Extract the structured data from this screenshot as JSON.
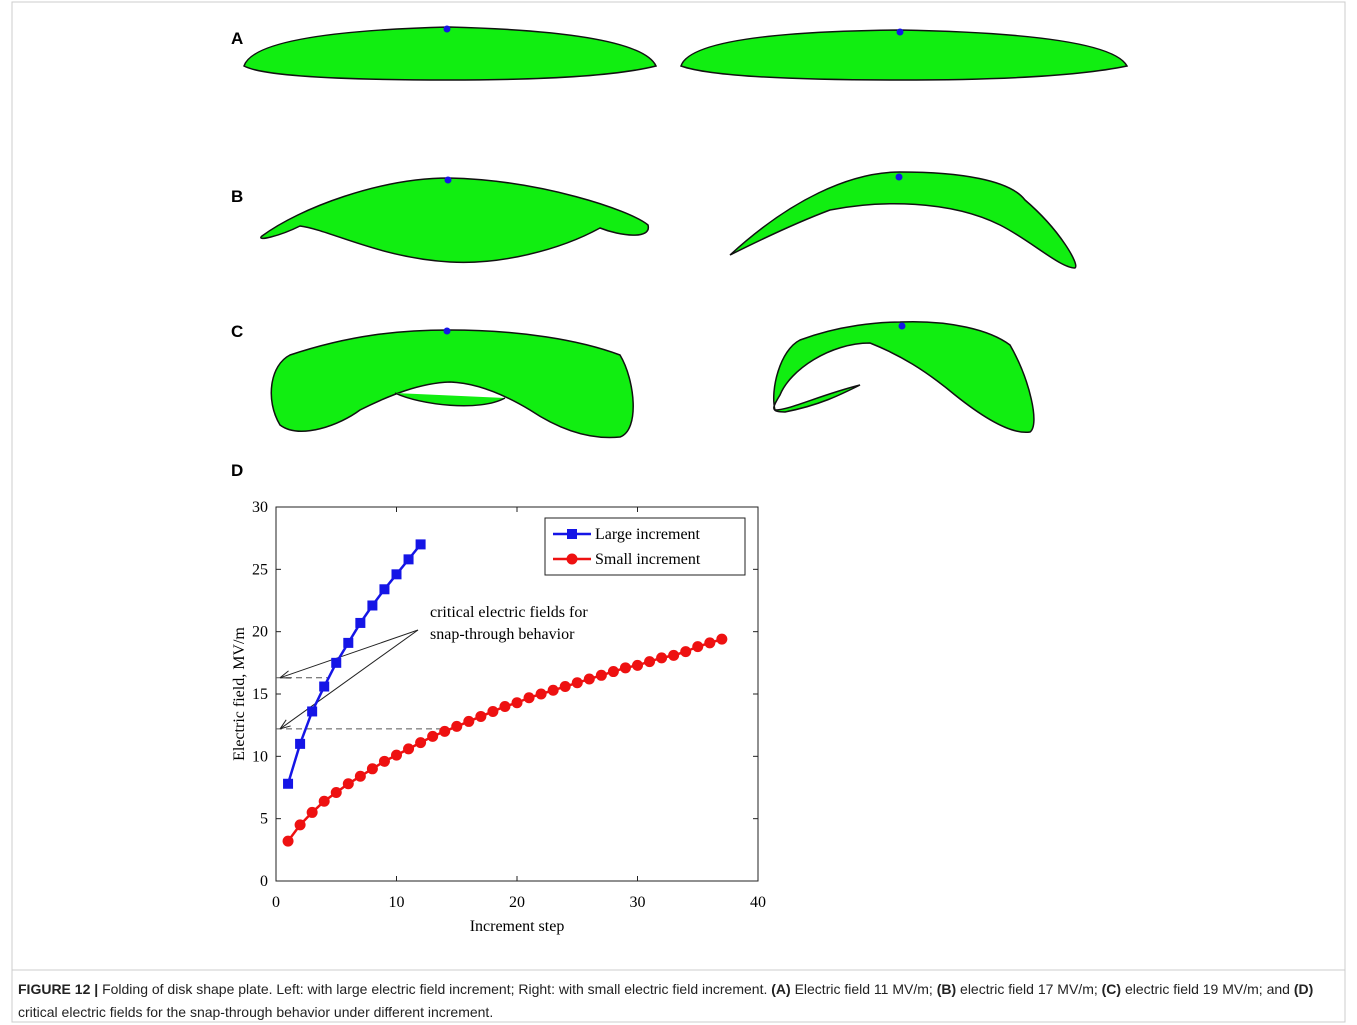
{
  "panels": {
    "a": {
      "label": "A"
    },
    "b": {
      "label": "B"
    },
    "c": {
      "label": "C"
    },
    "d": {
      "label": "D"
    }
  },
  "chart_data": {
    "type": "line",
    "xlabel": "Increment step",
    "ylabel": "Electric field, MV/m",
    "xlim": [
      0,
      40
    ],
    "ylim": [
      0,
      30
    ],
    "xticks": [
      0,
      10,
      20,
      30,
      40
    ],
    "yticks": [
      0,
      5,
      10,
      15,
      20,
      25,
      30
    ],
    "legend": "upper right",
    "series": [
      {
        "name": "Large increment",
        "color": "#1515e6",
        "marker": "square",
        "x": [
          1,
          2,
          3,
          4,
          5,
          6,
          7,
          8,
          9,
          10,
          11,
          12
        ],
        "values": [
          7.8,
          11,
          13.6,
          15.6,
          17.5,
          19.1,
          20.7,
          22.1,
          23.4,
          24.6,
          25.8,
          27
        ]
      },
      {
        "name": "Small increment",
        "color": "#ee1111",
        "marker": "circle",
        "x": [
          1,
          2,
          3,
          4,
          5,
          6,
          7,
          8,
          9,
          10,
          11,
          12,
          13,
          14,
          15,
          16,
          17,
          18,
          19,
          20,
          21,
          22,
          23,
          24,
          25,
          26,
          27,
          28,
          29,
          30,
          31,
          32,
          33,
          34,
          35,
          36,
          37
        ],
        "values": [
          3.2,
          4.5,
          5.5,
          6.4,
          7.1,
          7.8,
          8.4,
          9.0,
          9.6,
          10.1,
          10.6,
          11.1,
          11.6,
          12.0,
          12.4,
          12.8,
          13.2,
          13.6,
          14.0,
          14.3,
          14.7,
          15.0,
          15.3,
          15.6,
          15.9,
          16.2,
          16.5,
          16.8,
          17.1,
          17.3,
          17.6,
          17.9,
          18.1,
          18.4,
          18.8,
          19.1,
          19.4
        ]
      }
    ],
    "hlines": [
      {
        "y": 16.3,
        "x": [
          0,
          4.3
        ]
      },
      {
        "y": 12.2,
        "x": [
          0,
          14
        ]
      }
    ],
    "annotation": [
      "critical electric fields for",
      "snap-through behavior"
    ]
  },
  "caption": [
    {
      "text": "FIGURE 12 | ",
      "bold": true
    },
    {
      "text": "Folding of disk shape plate. Left: with large electric field increment; Right: with small electric field increment. ",
      "bold": false
    },
    {
      "text": "(A)",
      "bold": true
    },
    {
      "text": " Electric field 11 MV/m; ",
      "bold": false
    },
    {
      "text": "(B)",
      "bold": true
    },
    {
      "text": " electric field 17 MV/m; ",
      "bold": false
    },
    {
      "text": "(C)",
      "bold": true
    },
    {
      "text": " electric field 19 MV/m; and ",
      "bold": false
    },
    {
      "text": "(D)",
      "bold": true
    },
    {
      "text": " critical electric fields for the snap-through behavior under different increment.",
      "bold": false
    }
  ]
}
